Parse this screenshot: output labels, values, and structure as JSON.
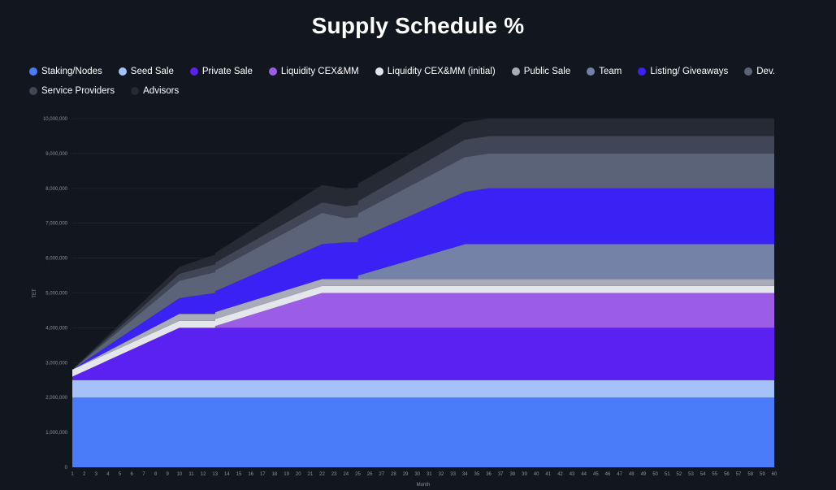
{
  "chart_data": {
    "type": "area",
    "stacked": true,
    "title": "Supply Schedule %",
    "xlabel": "Month",
    "ylabel": "TET",
    "xlim": [
      1,
      60
    ],
    "ylim": [
      0,
      10000000
    ],
    "y_ticks": [
      "0",
      "1,000,000",
      "2,000,000",
      "3,000,000",
      "4,000,000",
      "5,000,000",
      "6,000,000",
      "7,000,000",
      "8,000,000",
      "9,000,000",
      "10,000,000"
    ],
    "grid": true,
    "legend_position": "top",
    "series": [
      {
        "name": "Staking/Nodes",
        "color": "#4a7cfa",
        "points": [
          [
            1,
            2000000
          ],
          [
            60,
            2000000
          ]
        ]
      },
      {
        "name": "Seed Sale",
        "color": "#a6c1fa",
        "points": [
          [
            1,
            500000
          ],
          [
            60,
            500000
          ]
        ]
      },
      {
        "name": "Private Sale",
        "color": "#5b21f0",
        "points": [
          [
            1,
            100000
          ],
          [
            10,
            1500000
          ],
          [
            60,
            1500000
          ]
        ]
      },
      {
        "name": "Liquidity CEX&MM",
        "color": "#9b5de5",
        "points": [
          [
            1,
            0
          ],
          [
            13,
            0
          ],
          [
            13.01,
            50000
          ],
          [
            22,
            1000000
          ],
          [
            60,
            1000000
          ]
        ]
      },
      {
        "name": "Liquidity CEX&MM (initial)",
        "color": "#e4e6ec",
        "points": [
          [
            1,
            200000
          ],
          [
            60,
            200000
          ]
        ]
      },
      {
        "name": "Public Sale",
        "color": "#a9acb8",
        "points": [
          [
            1,
            0
          ],
          [
            10,
            200000
          ],
          [
            22,
            200000
          ],
          [
            60,
            200000
          ]
        ]
      },
      {
        "name": "Team",
        "color": "#7482a8",
        "points": [
          [
            1,
            0
          ],
          [
            25,
            0
          ],
          [
            25.01,
            100000
          ],
          [
            34,
            1000000
          ],
          [
            60,
            1000000
          ]
        ]
      },
      {
        "name": "Listing/ Giveaways",
        "color": "#3a22f5",
        "points": [
          [
            1,
            0
          ],
          [
            10,
            450000
          ],
          [
            12,
            550000
          ],
          [
            22,
            1000000
          ],
          [
            24,
            1050000
          ],
          [
            25,
            1050000
          ],
          [
            34,
            1500000
          ],
          [
            36,
            1600000
          ],
          [
            60,
            1600000
          ]
        ]
      },
      {
        "name": "Dev.",
        "color": "#5a6378",
        "points": [
          [
            1,
            0
          ],
          [
            10,
            500000
          ],
          [
            22,
            900000
          ],
          [
            24,
            700000
          ],
          [
            34,
            1000000
          ],
          [
            36,
            1000000
          ],
          [
            60,
            1000000
          ]
        ]
      },
      {
        "name": "Service Providers",
        "color": "#404655",
        "points": [
          [
            1,
            0
          ],
          [
            10,
            200000
          ],
          [
            22,
            300000
          ],
          [
            34,
            500000
          ],
          [
            36,
            500000
          ],
          [
            60,
            500000
          ]
        ]
      },
      {
        "name": "Advisors",
        "color": "#262a35",
        "points": [
          [
            1,
            0
          ],
          [
            10,
            200000
          ],
          [
            22,
            500000
          ],
          [
            34,
            500000
          ],
          [
            36,
            500000
          ],
          [
            60,
            500000
          ]
        ]
      }
    ]
  }
}
